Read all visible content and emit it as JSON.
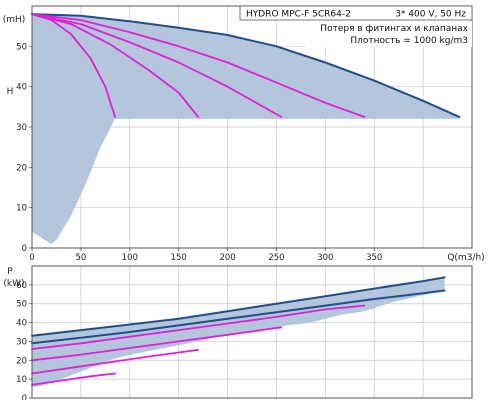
{
  "header": {
    "product": "HYDRO MPC-F 5CR64-2",
    "supply": "3* 400 V, 50 Hz",
    "note1": "Потеря в фитингах и клапанах",
    "note2": "Плотность = 1000 kg/m3"
  },
  "colors": {
    "dark_curve": "#1f4e8c",
    "magenta_curve": "#e020d8",
    "area_fill": "#b3c6db",
    "grid": "#c8c8c8"
  },
  "chart_data": [
    {
      "type": "line",
      "title": "",
      "ylabel_letter": "H",
      "ylabel_unit": "(mH)",
      "xlabel": "Q(m3/h)",
      "xlim": [
        0,
        450
      ],
      "ylim": [
        0,
        60
      ],
      "x_ticks": [
        "0",
        "50",
        "100",
        "150",
        "200",
        "250",
        "300",
        "350"
      ],
      "y_ticks": [
        "0",
        "10",
        "20",
        "30",
        "40",
        "50"
      ],
      "grid": true,
      "min_level": 32,
      "operating_area": [
        [
          0,
          58
        ],
        [
          50,
          57.6
        ],
        [
          100,
          56.2
        ],
        [
          150,
          54.6
        ],
        [
          200,
          52.8
        ],
        [
          250,
          50
        ],
        [
          300,
          46
        ],
        [
          350,
          41.5
        ],
        [
          400,
          36.5
        ],
        [
          422,
          34
        ],
        [
          437,
          32.5
        ],
        [
          437,
          32
        ],
        [
          85,
          32
        ],
        [
          70,
          25
        ],
        [
          55,
          16
        ],
        [
          40,
          8
        ],
        [
          25,
          2
        ],
        [
          20,
          1
        ],
        [
          0,
          4
        ]
      ],
      "series": [
        {
          "pumps": 5,
          "color": "dark",
          "points": [
            [
              0,
              58
            ],
            [
              50,
              57.6
            ],
            [
              100,
              56.2
            ],
            [
              150,
              54.6
            ],
            [
              200,
              52.8
            ],
            [
              250,
              50
            ],
            [
              300,
              46
            ],
            [
              350,
              41.5
            ],
            [
              400,
              36.5
            ],
            [
              437,
              32.5
            ]
          ]
        },
        {
          "pumps": 4,
          "color": "magenta",
          "points": [
            [
              0,
              58
            ],
            [
              50,
              56.5
            ],
            [
              100,
              53.5
            ],
            [
              150,
              50
            ],
            [
              200,
              46
            ],
            [
              250,
              41
            ],
            [
              300,
              36
            ],
            [
              340,
              32.5
            ]
          ]
        },
        {
          "pumps": 3,
          "color": "magenta",
          "points": [
            [
              0,
              58
            ],
            [
              50,
              55.5
            ],
            [
              100,
              51
            ],
            [
              150,
              46
            ],
            [
              200,
              40
            ],
            [
              255,
              32.5
            ]
          ]
        },
        {
          "pumps": 2,
          "color": "magenta",
          "points": [
            [
              0,
              58
            ],
            [
              40,
              55.5
            ],
            [
              80,
              50.5
            ],
            [
              120,
              44
            ],
            [
              150,
              38.5
            ],
            [
              170,
              32.5
            ]
          ]
        },
        {
          "pumps": 1,
          "color": "magenta",
          "points": [
            [
              0,
              58
            ],
            [
              20,
              56.5
            ],
            [
              40,
              53
            ],
            [
              60,
              47
            ],
            [
              75,
              40
            ],
            [
              85,
              32.5
            ]
          ]
        }
      ]
    },
    {
      "type": "line",
      "title": "",
      "ylabel_letter": "P",
      "ylabel_unit": "(kW)",
      "xlim": [
        0,
        450
      ],
      "ylim": [
        0,
        70
      ],
      "y_ticks": [
        "0",
        "10",
        "20",
        "30",
        "40",
        "50",
        "60"
      ],
      "grid": true,
      "operating_area": [
        [
          0,
          33
        ],
        [
          50,
          36
        ],
        [
          100,
          39
        ],
        [
          150,
          42
        ],
        [
          200,
          46
        ],
        [
          250,
          50
        ],
        [
          300,
          54
        ],
        [
          350,
          58
        ],
        [
          400,
          62
        ],
        [
          422,
          64
        ],
        [
          422,
          57
        ],
        [
          395,
          54
        ],
        [
          370,
          51
        ],
        [
          340,
          46
        ],
        [
          315,
          44
        ],
        [
          285,
          40
        ],
        [
          255,
          38
        ],
        [
          230,
          35
        ],
        [
          195,
          33
        ],
        [
          170,
          30
        ],
        [
          140,
          27
        ],
        [
          110,
          24
        ],
        [
          85,
          21
        ],
        [
          60,
          16
        ],
        [
          40,
          12
        ],
        [
          20,
          8
        ],
        [
          5,
          6
        ],
        [
          0,
          6
        ]
      ],
      "series": [
        {
          "pumps": 5,
          "color": "dark",
          "points": [
            [
              0,
              33
            ],
            [
              50,
              36
            ],
            [
              100,
              39
            ],
            [
              150,
              42
            ],
            [
              200,
              46
            ],
            [
              250,
              50
            ],
            [
              300,
              54
            ],
            [
              350,
              58
            ],
            [
              400,
              62
            ],
            [
              422,
              64
            ]
          ]
        },
        {
          "pumps": 5,
          "color": "dark",
          "points": [
            [
              0,
              29
            ],
            [
              50,
              32
            ],
            [
              100,
              35
            ],
            [
              150,
              38.5
            ],
            [
              200,
              42
            ],
            [
              250,
              45.5
            ],
            [
              300,
              49
            ],
            [
              350,
              52.5
            ],
            [
              400,
              55.5
            ],
            [
              422,
              57
            ]
          ]
        },
        {
          "pumps": 4,
          "color": "magenta",
          "points": [
            [
              0,
              26
            ],
            [
              50,
              29
            ],
            [
              100,
              32.5
            ],
            [
              150,
              36
            ],
            [
              200,
              39.5
            ],
            [
              250,
              43
            ],
            [
              300,
              47
            ],
            [
              340,
              49
            ]
          ]
        },
        {
          "pumps": 3,
          "color": "magenta",
          "points": [
            [
              0,
              20
            ],
            [
              50,
              23
            ],
            [
              100,
              26.5
            ],
            [
              150,
              30
            ],
            [
              200,
              33.5
            ],
            [
              255,
              37.5
            ]
          ]
        },
        {
          "pumps": 2,
          "color": "magenta",
          "points": [
            [
              0,
              13
            ],
            [
              40,
              16
            ],
            [
              80,
              19
            ],
            [
              120,
              22
            ],
            [
              170,
              25.5
            ]
          ]
        },
        {
          "pumps": 1,
          "color": "magenta",
          "points": [
            [
              0,
              7
            ],
            [
              20,
              8.5
            ],
            [
              40,
              10
            ],
            [
              60,
              11.5
            ],
            [
              85,
              13
            ]
          ]
        }
      ]
    }
  ]
}
